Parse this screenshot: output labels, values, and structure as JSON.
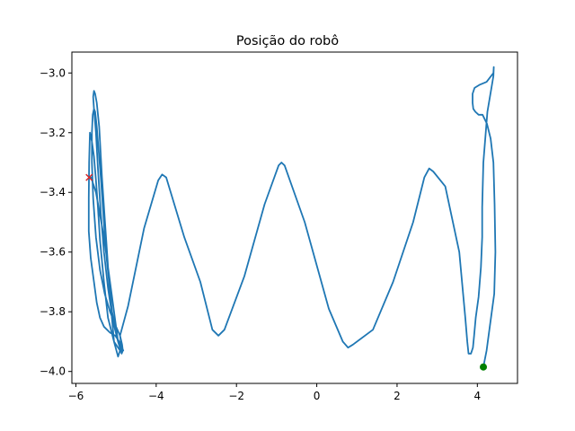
{
  "chart_data": {
    "type": "line",
    "title": "Posição do robô",
    "xlabel": "",
    "ylabel": "",
    "xlim": [
      -6.1,
      5.0
    ],
    "ylim": [
      -4.04,
      -2.93
    ],
    "xticks": [
      -6,
      -4,
      -2,
      0,
      2,
      4
    ],
    "xtick_labels": [
      "−6",
      "−4",
      "−2",
      "0",
      "2",
      "4"
    ],
    "yticks": [
      -4.0,
      -3.8,
      -3.6,
      -3.4,
      -3.2,
      -3.0
    ],
    "ytick_labels": [
      "−4.0",
      "−3.8",
      "−3.6",
      "−3.4",
      "−3.2",
      "−3.0"
    ],
    "grid": false,
    "series": [
      {
        "line_color": "#1f77b4",
        "x": [
          4.15,
          4.23,
          4.3,
          4.42,
          4.45,
          4.43,
          4.4,
          4.33,
          4.24,
          4.13,
          4.03,
          3.95,
          3.9,
          3.88,
          3.88,
          3.93,
          4.05,
          4.23,
          4.4,
          4.41,
          4.4,
          4.35,
          4.25,
          4.15,
          4.12,
          4.12,
          4.09,
          4.03,
          3.96,
          3.92,
          3.89,
          3.84,
          3.78,
          3.75,
          3.7,
          3.55,
          3.2,
          2.9,
          2.8,
          2.68,
          2.4,
          1.9,
          1.4,
          0.9,
          0.78,
          0.65,
          0.3,
          -0.3,
          -0.8,
          -0.88,
          -0.95,
          -1.3,
          -1.8,
          -2.3,
          -2.45,
          -2.6,
          -2.9,
          -3.3,
          -3.75,
          -3.85,
          -3.95,
          -4.3,
          -4.7,
          -4.9,
          -4.88,
          -4.9,
          -5.05,
          -5.2,
          -5.3,
          -5.4,
          -5.45,
          -5.5,
          -5.55,
          -5.6,
          -5.65,
          -5.67,
          -5.68,
          -5.68,
          -5.63,
          -5.55,
          -5.48,
          -5.4,
          -5.3,
          -5.15,
          -5.02,
          -4.92,
          -4.9,
          -4.95,
          -5.05,
          -5.15,
          -5.25,
          -5.35,
          -5.42,
          -5.48,
          -5.52,
          -5.55,
          -5.57,
          -5.55,
          -5.5,
          -5.45,
          -5.38,
          -5.3,
          -5.2,
          -5.08,
          -4.95,
          -4.85,
          -4.82,
          -4.85,
          -4.95,
          -5.1,
          -5.25,
          -5.38,
          -5.48,
          -5.52,
          -5.55,
          -5.58,
          -5.6,
          -5.6,
          -5.57,
          -5.5,
          -5.4,
          -5.28,
          -5.15,
          -5.0,
          -4.9,
          -4.85,
          -4.83,
          -4.86,
          -4.95,
          -5.1,
          -5.3,
          -5.5,
          -5.62,
          -5.67
        ],
        "y": [
          -3.985,
          -3.93,
          -3.86,
          -3.74,
          -3.6,
          -3.44,
          -3.3,
          -3.22,
          -3.17,
          -3.14,
          -3.14,
          -3.13,
          -3.12,
          -3.1,
          -3.07,
          -3.05,
          -3.04,
          -3.03,
          -3.0,
          -2.98,
          -3.01,
          -3.05,
          -3.13,
          -3.3,
          -3.45,
          -3.55,
          -3.65,
          -3.75,
          -3.82,
          -3.88,
          -3.92,
          -3.94,
          -3.94,
          -3.9,
          -3.82,
          -3.6,
          -3.38,
          -3.33,
          -3.32,
          -3.35,
          -3.5,
          -3.7,
          -3.86,
          -3.91,
          -3.92,
          -3.9,
          -3.79,
          -3.5,
          -3.31,
          -3.3,
          -3.31,
          -3.44,
          -3.68,
          -3.86,
          -3.88,
          -3.86,
          -3.7,
          -3.55,
          -3.35,
          -3.34,
          -3.36,
          -3.52,
          -3.78,
          -3.88,
          -3.9,
          -3.93,
          -3.9,
          -3.82,
          -3.7,
          -3.56,
          -3.45,
          -3.36,
          -3.28,
          -3.23,
          -3.2,
          -3.3,
          -3.42,
          -3.53,
          -3.62,
          -3.7,
          -3.77,
          -3.82,
          -3.85,
          -3.87,
          -3.88,
          -3.9,
          -3.93,
          -3.95,
          -3.9,
          -3.75,
          -3.55,
          -3.35,
          -3.18,
          -3.1,
          -3.07,
          -3.06,
          -3.08,
          -3.12,
          -3.2,
          -3.32,
          -3.47,
          -3.6,
          -3.72,
          -3.83,
          -3.9,
          -3.92,
          -3.93,
          -3.93,
          -3.9,
          -3.8,
          -3.6,
          -3.35,
          -3.18,
          -3.13,
          -3.12,
          -3.14,
          -3.2,
          -3.3,
          -3.42,
          -3.55,
          -3.66,
          -3.74,
          -3.8,
          -3.85,
          -3.88,
          -3.91,
          -3.93,
          -3.94,
          -3.9,
          -3.75,
          -3.55,
          -3.4,
          -3.35,
          -3.35
        ]
      }
    ],
    "markers": [
      {
        "label": "start",
        "x": 4.15,
        "y": -3.985,
        "shape": "circle",
        "color": "#008000"
      },
      {
        "label": "end",
        "x": -5.67,
        "y": -3.35,
        "shape": "x",
        "color": "#d62728"
      }
    ]
  }
}
